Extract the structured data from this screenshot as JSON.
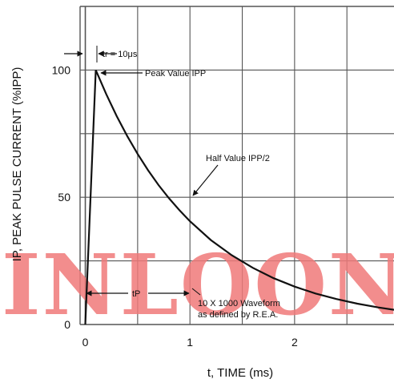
{
  "chart_data": {
    "type": "line",
    "x": [
      0,
      0.1,
      0.2,
      0.3,
      0.4,
      0.5,
      0.6,
      0.7,
      0.8,
      0.9,
      1.0,
      1.2,
      1.4,
      1.6,
      1.8,
      2.0,
      2.2,
      2.4,
      2.6,
      2.8,
      2.95
    ],
    "series": [
      {
        "values": [
          0,
          100,
          90.5,
          81.9,
          74.1,
          67.0,
          60.6,
          54.8,
          49.6,
          44.9,
          40.6,
          33.2,
          27.2,
          22.3,
          18.2,
          14.9,
          12.2,
          10.0,
          8.2,
          6.7,
          5.8
        ]
      }
    ],
    "xlabel": "t, TIME (ms)",
    "ylabel": "IP, PEAK PULSE CURRENT (%IPP)",
    "x_ticks": [
      "0",
      "1",
      "2"
    ],
    "y_ticks": [
      "0",
      "50",
      "100"
    ],
    "xlim": [
      -0.05,
      2.95
    ],
    "ylim": [
      0,
      125
    ],
    "grid": true,
    "annotations": {
      "tr": "tr = 10μs",
      "peak": "Peak Value IPP",
      "half": "Half Value IPP/2",
      "tp": "tP",
      "waveform_line1": "10 X 1000 Waveform",
      "waveform_line2": "as defined by R.E.A."
    }
  },
  "watermark": "INLOON",
  "colors": {
    "curve": "#111111",
    "grid": "#555555",
    "watermark": "#f07a7a"
  }
}
